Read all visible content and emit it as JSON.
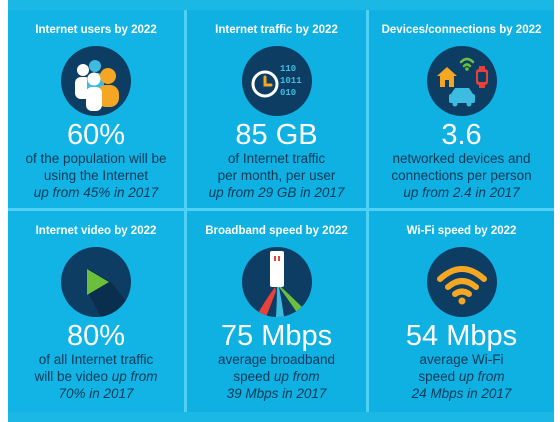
{
  "tiles": [
    {
      "title": "Internet users by 2022",
      "icon": "people-icon",
      "value": "60%",
      "line1": "of the population will be",
      "line2": "using the Internet",
      "line3_italic": "up from 45% in 2017"
    },
    {
      "title": "Internet traffic by 2022",
      "icon": "clock-binary-icon",
      "binary": [
        "110",
        "1011",
        "010"
      ],
      "value": "85 GB",
      "line1": "of Internet traffic",
      "line2": "per month, per user",
      "line3_italic": "up from 29 GB in 2017"
    },
    {
      "title": "Devices/connections by 2022",
      "icon": "connected-devices-icon",
      "value": "3.6",
      "line1": "networked devices and",
      "line2": "connections per person",
      "line3_italic": "up from 2.4 in 2017"
    },
    {
      "title": "Internet video by 2022",
      "icon": "play-icon",
      "value": "80%",
      "line1": "of all Internet traffic",
      "line2_plain": "will be video ",
      "line2_italic": "up from",
      "line3_italic": "70% in 2017"
    },
    {
      "title": "Broadband speed by 2022",
      "icon": "broadband-cable-icon",
      "value": "75 Mbps",
      "line1": "average broadband",
      "line2_plain": "speed ",
      "line2_italic": "up from",
      "line3_italic": "39 Mbps in 2017"
    },
    {
      "title": "Wi-Fi speed by 2022",
      "icon": "wifi-icon",
      "value": "54 Mbps",
      "line1": "average Wi-Fi",
      "line2_plain": "speed ",
      "line2_italic": "up from",
      "line3_italic": "24 Mbps in 2017"
    }
  ],
  "colors": {
    "background": "#1bb8e6",
    "icon_circle": "#0e3d63",
    "text_dark": "#0b3a58",
    "orange": "#f5a623",
    "red": "#e8413a",
    "green": "#6bbf3a",
    "teal": "#3dbbe0"
  }
}
